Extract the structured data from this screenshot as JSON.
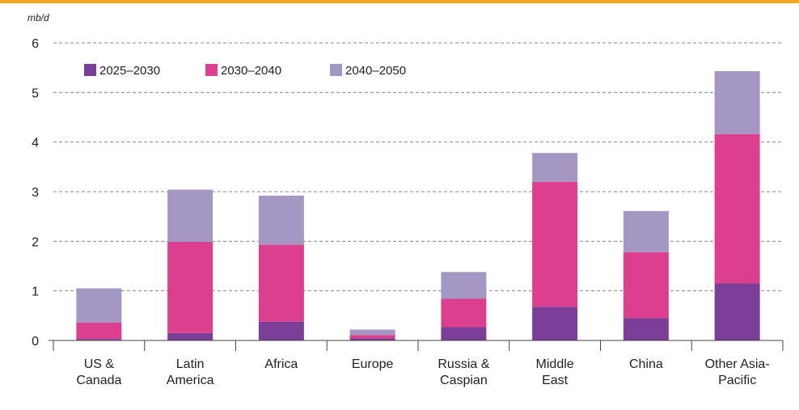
{
  "chart_data": {
    "type": "bar",
    "stacked": true,
    "unit_label": "mb/d",
    "ylim": [
      0,
      6
    ],
    "yticks": [
      0,
      1,
      2,
      3,
      4,
      5,
      6
    ],
    "grid": "horizontal dashed",
    "legend_position": "top-left",
    "categories": [
      [
        "US &",
        "Canada"
      ],
      [
        "Latin",
        "America"
      ],
      [
        "Africa"
      ],
      [
        "Europe"
      ],
      [
        "Russia &",
        "Caspian"
      ],
      [
        "Middle",
        "East"
      ],
      [
        "China"
      ],
      [
        "Other Asia-",
        "Pacific"
      ]
    ],
    "series": [
      {
        "name": "2025–2030",
        "color": "#7b3f99",
        "values": [
          0.03,
          0.15,
          0.38,
          0.04,
          0.27,
          0.68,
          0.45,
          1.15
        ]
      },
      {
        "name": "2030–2040",
        "color": "#dc3f8e",
        "values": [
          0.33,
          1.84,
          1.55,
          0.07,
          0.57,
          2.52,
          1.33,
          3.01
        ]
      },
      {
        "name": "2040–2050",
        "color": "#a597c3",
        "values": [
          0.69,
          1.05,
          0.99,
          0.11,
          0.54,
          0.58,
          0.83,
          1.27
        ]
      }
    ]
  }
}
